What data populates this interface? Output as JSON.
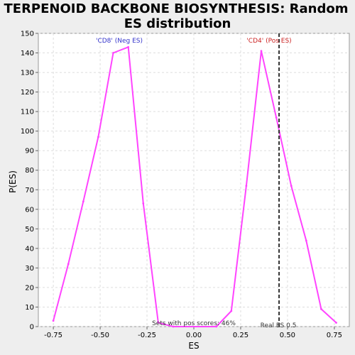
{
  "chart_data": {
    "type": "line",
    "title_lines": [
      "TERPENOID BACKBONE BIOSYNTHESIS: Random",
      "ES distribution"
    ],
    "xlabel": "ES",
    "ylabel": "P(ES)",
    "xlim": [
      -0.83,
      0.83
    ],
    "ylim": [
      0,
      150
    ],
    "xticks": [
      -0.75,
      -0.5,
      -0.25,
      0.0,
      0.25,
      0.5,
      0.75
    ],
    "xtick_labels": [
      "-0.75",
      "-0.50",
      "-0.25",
      "0.00",
      "0.25",
      "0.50",
      "0.75"
    ],
    "yticks": [
      0,
      10,
      20,
      30,
      40,
      50,
      60,
      70,
      80,
      90,
      100,
      110,
      120,
      130,
      140,
      150
    ],
    "ytick_labels": [
      "0",
      "10",
      "20",
      "30",
      "40",
      "50",
      "60",
      "70",
      "80",
      "90",
      "100",
      "110",
      "120",
      "130",
      "140",
      "150"
    ],
    "grid": true,
    "series": [
      {
        "color": "#ff44ff",
        "x": [
          -0.75,
          -0.67,
          -0.59,
          -0.51,
          -0.43,
          -0.35,
          -0.27,
          -0.19,
          -0.11,
          0.12,
          0.2,
          0.28,
          0.36,
          0.44,
          0.52,
          0.6,
          0.68,
          0.76
        ],
        "y": [
          3,
          32,
          64,
          97,
          140,
          143,
          63,
          2,
          0,
          0,
          8,
          72,
          141,
          107,
          72,
          44,
          9,
          2
        ]
      }
    ],
    "vline": {
      "x": 0.455,
      "color": "#333333"
    },
    "annotations": {
      "neg_label": "'CD8' (Neg ES)",
      "neg_color": "#3333cc",
      "pos_label": "'CD4' (Pos ES)",
      "pos_color": "#cc2222",
      "sets_text": "Sets with pos scores: 46%",
      "real_es_text": "Real ES 0.5"
    }
  }
}
